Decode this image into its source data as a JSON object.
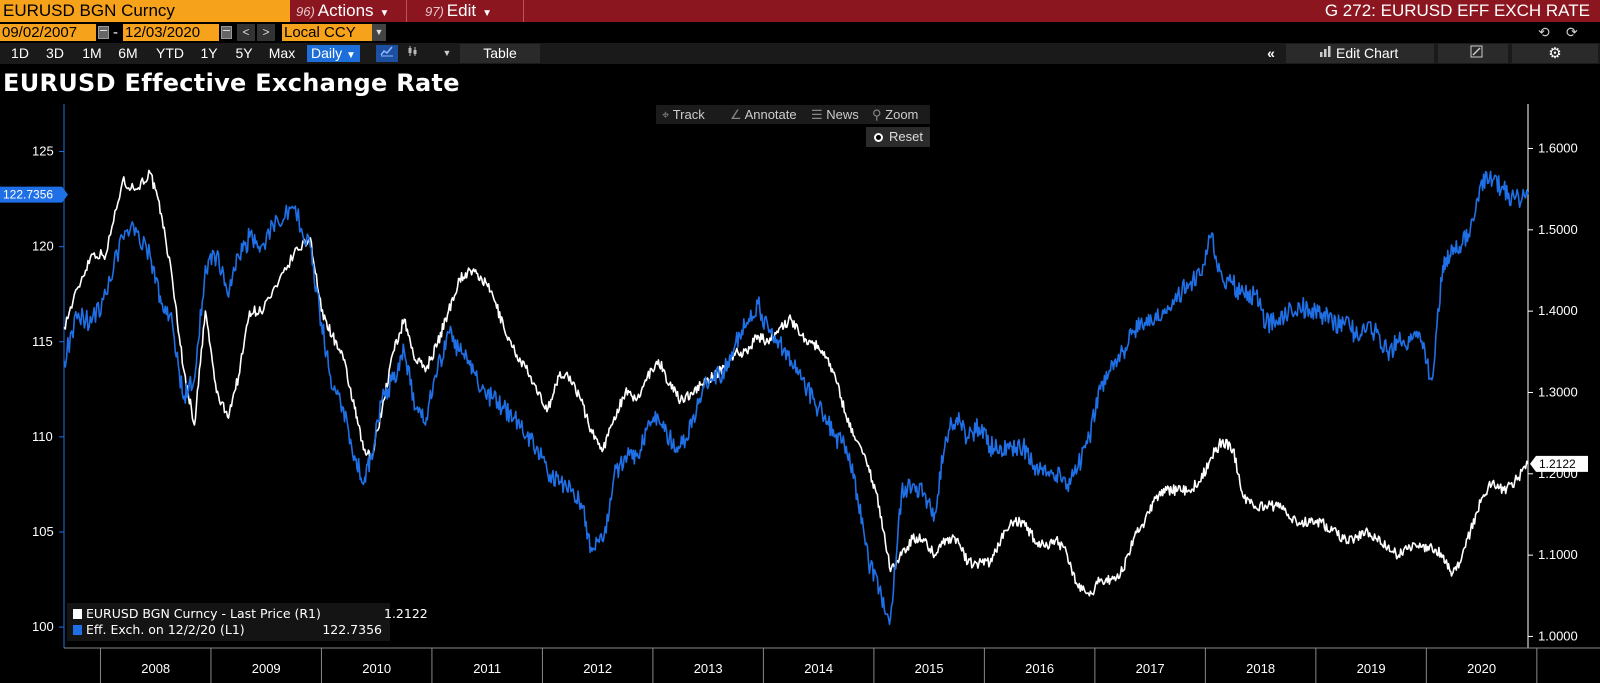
{
  "topbar": {
    "ticker": "EURUSD BGN Curncy",
    "actions_num": "96)",
    "actions_label": "Actions",
    "edit_num": "97)",
    "edit_label": "Edit",
    "function_title": "G 272: EURUSD EFF EXCH RATE"
  },
  "daterow": {
    "start_date": "09/02/2007",
    "end_date": "12/03/2020",
    "currency": "Local CCY"
  },
  "toolbar": {
    "periods": [
      "1D",
      "3D",
      "1M",
      "6M",
      "YTD",
      "1Y",
      "5Y",
      "Max"
    ],
    "frequency": "Daily",
    "table_label": "Table",
    "edit_chart_label": "Edit Chart"
  },
  "chart_tools": {
    "track": "Track",
    "annotate": "Annotate",
    "news": "News",
    "zoom": "Zoom",
    "reset": "Reset"
  },
  "colors": {
    "accent_orange": "#f7a21b",
    "bar_red": "#8b1620",
    "series_white": "#ffffff",
    "series_blue": "#1f6fe6"
  },
  "chart_data": {
    "type": "line",
    "title": "EURUSD Effective Exchange Rate",
    "x_years": [
      "2008",
      "2009",
      "2010",
      "2011",
      "2012",
      "2013",
      "2014",
      "2015",
      "2016",
      "2017",
      "2018",
      "2019",
      "2020"
    ],
    "x_range": [
      2007.67,
      2020.92
    ],
    "left_axis": {
      "ticks": [
        100,
        105,
        110,
        115,
        120,
        125
      ],
      "range": [
        98.9,
        127.5
      ],
      "last_value_label": "122.7356",
      "last_value": 122.7356
    },
    "right_axis": {
      "ticks": [
        "1.0000",
        "1.1000",
        "1.2000",
        "1.3000",
        "1.4000",
        "1.5000",
        "1.6000"
      ],
      "range": [
        0.9858,
        1.6547
      ],
      "last_value_label": "1.2122",
      "last_value": 1.2122
    },
    "series": [
      {
        "name": "EURUSD BGN Curncy - Last Price (R1)",
        "legend_value": "1.2122",
        "axis": "right",
        "color": "#ffffff",
        "x": [
          2007.67,
          2007.8,
          2007.92,
          2008.05,
          2008.2,
          2008.32,
          2008.45,
          2008.55,
          2008.65,
          2008.75,
          2008.85,
          2008.95,
          2009.05,
          2009.15,
          2009.25,
          2009.35,
          2009.45,
          2009.6,
          2009.75,
          2009.9,
          2010.0,
          2010.1,
          2010.2,
          2010.3,
          2010.38,
          2010.45,
          2010.55,
          2010.65,
          2010.75,
          2010.85,
          2010.95,
          2011.05,
          2011.15,
          2011.25,
          2011.35,
          2011.45,
          2011.55,
          2011.65,
          2011.75,
          2011.85,
          2011.95,
          2012.05,
          2012.15,
          2012.25,
          2012.35,
          2012.45,
          2012.55,
          2012.65,
          2012.75,
          2012.85,
          2012.95,
          2013.05,
          2013.15,
          2013.25,
          2013.35,
          2013.45,
          2013.55,
          2013.65,
          2013.75,
          2013.85,
          2013.95,
          2014.05,
          2014.15,
          2014.25,
          2014.35,
          2014.45,
          2014.55,
          2014.65,
          2014.75,
          2014.85,
          2014.95,
          2015.05,
          2015.15,
          2015.25,
          2015.35,
          2015.45,
          2015.55,
          2015.65,
          2015.75,
          2015.85,
          2015.95,
          2016.05,
          2016.15,
          2016.25,
          2016.35,
          2016.45,
          2016.55,
          2016.65,
          2016.75,
          2016.85,
          2016.95,
          2017.05,
          2017.15,
          2017.25,
          2017.35,
          2017.45,
          2017.55,
          2017.65,
          2017.75,
          2017.85,
          2017.95,
          2018.05,
          2018.15,
          2018.25,
          2018.35,
          2018.45,
          2018.55,
          2018.65,
          2018.75,
          2018.85,
          2018.95,
          2019.05,
          2019.15,
          2019.25,
          2019.35,
          2019.45,
          2019.55,
          2019.65,
          2019.75,
          2019.85,
          2019.95,
          2020.05,
          2020.15,
          2020.22,
          2020.3,
          2020.4,
          2020.5,
          2020.6,
          2020.7,
          2020.8,
          2020.92
        ],
        "values": [
          1.38,
          1.43,
          1.47,
          1.47,
          1.56,
          1.55,
          1.57,
          1.52,
          1.44,
          1.33,
          1.26,
          1.4,
          1.3,
          1.27,
          1.32,
          1.4,
          1.4,
          1.43,
          1.47,
          1.49,
          1.4,
          1.37,
          1.34,
          1.28,
          1.23,
          1.22,
          1.28,
          1.35,
          1.39,
          1.34,
          1.33,
          1.36,
          1.4,
          1.44,
          1.45,
          1.44,
          1.42,
          1.38,
          1.35,
          1.33,
          1.3,
          1.28,
          1.32,
          1.32,
          1.29,
          1.25,
          1.23,
          1.27,
          1.3,
          1.29,
          1.32,
          1.34,
          1.31,
          1.29,
          1.3,
          1.31,
          1.32,
          1.33,
          1.35,
          1.35,
          1.37,
          1.36,
          1.38,
          1.39,
          1.37,
          1.36,
          1.35,
          1.32,
          1.27,
          1.24,
          1.21,
          1.16,
          1.08,
          1.1,
          1.12,
          1.12,
          1.1,
          1.12,
          1.12,
          1.09,
          1.09,
          1.09,
          1.12,
          1.14,
          1.14,
          1.12,
          1.11,
          1.12,
          1.1,
          1.06,
          1.05,
          1.07,
          1.07,
          1.08,
          1.12,
          1.14,
          1.17,
          1.18,
          1.18,
          1.18,
          1.19,
          1.22,
          1.24,
          1.23,
          1.17,
          1.16,
          1.16,
          1.16,
          1.15,
          1.14,
          1.14,
          1.14,
          1.13,
          1.12,
          1.12,
          1.13,
          1.12,
          1.11,
          1.1,
          1.11,
          1.11,
          1.11,
          1.1,
          1.08,
          1.09,
          1.13,
          1.17,
          1.19,
          1.18,
          1.19,
          1.2122
        ]
      },
      {
        "name": "Eff. Exch.  on 12/2/20 (L1)",
        "legend_value": "122.7356",
        "axis": "left",
        "color": "#1f6fe6",
        "x": [
          2007.67,
          2007.8,
          2007.92,
          2008.05,
          2008.2,
          2008.32,
          2008.45,
          2008.55,
          2008.65,
          2008.75,
          2008.85,
          2008.95,
          2009.05,
          2009.15,
          2009.25,
          2009.35,
          2009.45,
          2009.6,
          2009.75,
          2009.9,
          2010.0,
          2010.1,
          2010.2,
          2010.3,
          2010.38,
          2010.45,
          2010.55,
          2010.65,
          2010.75,
          2010.85,
          2010.95,
          2011.05,
          2011.15,
          2011.25,
          2011.35,
          2011.45,
          2011.55,
          2011.65,
          2011.75,
          2011.85,
          2011.95,
          2012.05,
          2012.15,
          2012.25,
          2012.35,
          2012.45,
          2012.55,
          2012.65,
          2012.75,
          2012.85,
          2012.95,
          2013.05,
          2013.15,
          2013.25,
          2013.35,
          2013.45,
          2013.55,
          2013.65,
          2013.75,
          2013.85,
          2013.95,
          2014.05,
          2014.15,
          2014.25,
          2014.35,
          2014.45,
          2014.55,
          2014.65,
          2014.75,
          2014.85,
          2014.95,
          2015.05,
          2015.15,
          2015.25,
          2015.35,
          2015.45,
          2015.55,
          2015.65,
          2015.75,
          2015.85,
          2015.95,
          2016.05,
          2016.15,
          2016.25,
          2016.35,
          2016.45,
          2016.55,
          2016.65,
          2016.75,
          2016.85,
          2016.95,
          2017.05,
          2017.15,
          2017.25,
          2017.35,
          2017.45,
          2017.55,
          2017.65,
          2017.75,
          2017.85,
          2017.95,
          2018.05,
          2018.15,
          2018.25,
          2018.35,
          2018.45,
          2018.55,
          2018.65,
          2018.75,
          2018.85,
          2018.95,
          2019.05,
          2019.15,
          2019.25,
          2019.35,
          2019.45,
          2019.55,
          2019.65,
          2019.75,
          2019.85,
          2019.95,
          2020.05,
          2020.15,
          2020.22,
          2020.3,
          2020.4,
          2020.5,
          2020.6,
          2020.7,
          2020.8,
          2020.92
        ],
        "values": [
          114.0,
          116.5,
          116.0,
          117.5,
          120.5,
          121.0,
          119.5,
          117.0,
          116.0,
          112.0,
          113.0,
          119.0,
          119.5,
          117.5,
          119.5,
          120.5,
          120.0,
          121.5,
          122.0,
          120.0,
          116.0,
          112.5,
          111.5,
          109.0,
          107.5,
          109.0,
          112.0,
          113.0,
          114.5,
          111.5,
          111.0,
          113.5,
          115.5,
          114.5,
          114.0,
          112.5,
          112.0,
          111.5,
          111.0,
          110.0,
          109.5,
          108.0,
          107.5,
          107.5,
          106.5,
          104.0,
          104.5,
          108.0,
          109.0,
          109.0,
          110.5,
          111.0,
          110.0,
          109.5,
          110.5,
          112.5,
          113.0,
          113.5,
          115.0,
          116.0,
          117.0,
          115.5,
          115.0,
          114.0,
          113.0,
          112.0,
          111.0,
          110.0,
          109.5,
          107.0,
          103.5,
          102.0,
          100.5,
          107.0,
          107.5,
          107.0,
          106.0,
          110.0,
          111.0,
          110.0,
          110.5,
          109.5,
          109.5,
          109.5,
          109.5,
          108.5,
          108.5,
          108.0,
          107.5,
          108.5,
          110.0,
          112.5,
          114.0,
          114.5,
          115.5,
          116.0,
          116.5,
          116.5,
          117.5,
          118.0,
          118.5,
          120.5,
          118.5,
          118.0,
          117.5,
          117.5,
          116.0,
          116.0,
          116.5,
          117.0,
          116.5,
          116.5,
          116.0,
          116.0,
          115.5,
          115.5,
          115.5,
          114.5,
          115.0,
          115.0,
          115.0,
          113.0,
          119.0,
          119.5,
          120.0,
          121.0,
          123.5,
          123.5,
          123.0,
          122.5,
          122.7356
        ]
      }
    ]
  }
}
